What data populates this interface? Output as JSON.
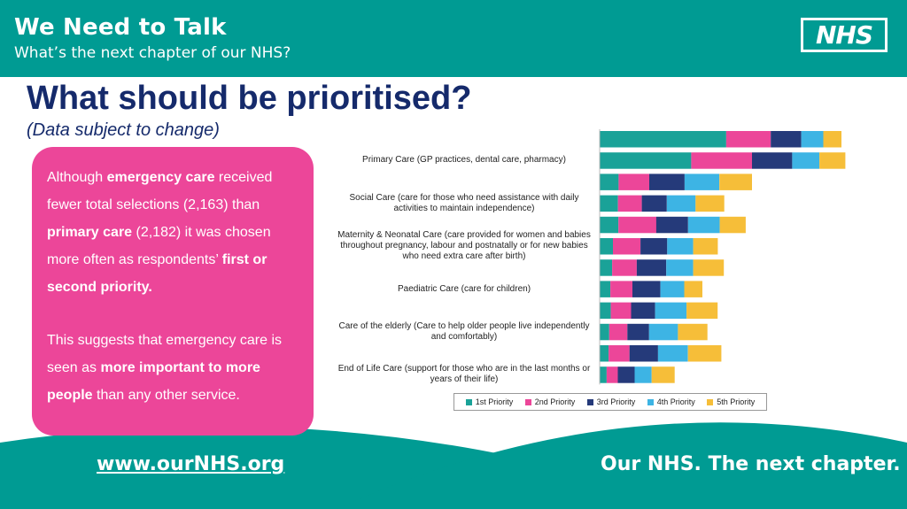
{
  "header": {
    "title": "We Need to Talk",
    "subtitle": "What’s the next chapter of our NHS?",
    "logo_text": "NHS"
  },
  "page": {
    "title": "What should be prioritised?",
    "note": "(Data subject to change)"
  },
  "callout": {
    "p1_parts": [
      "Although ",
      "emergency care",
      " received fewer total selections (2,163) than ",
      "primary care",
      " (2,182) it was chosen more often as respondents’ ",
      "first or second priority."
    ],
    "p2_parts": [
      "This suggests that emergency care is seen as ",
      "more important to more people",
      " than any other service."
    ]
  },
  "footer": {
    "url": "www.ourNHS.org",
    "tagline": "Our NHS. The next chapter."
  },
  "colors": {
    "teal": "#009b93",
    "pink": "#ec4699",
    "navy": "#152a6b",
    "series": [
      "#1aa298",
      "#ec4699",
      "#253a7a",
      "#3db4e4",
      "#f6be39"
    ]
  },
  "chart_data": {
    "type": "bar",
    "orientation": "horizontal",
    "stacked": true,
    "categories": [
      "",
      "Primary Care  (GP practices, dental care, pharmacy)",
      "",
      "Social Care (care for those who need assistance with daily activities to maintain independence)",
      "",
      "Maternity & Neonatal Care (care provided for women and babies throughout pregnancy, labour and postnatally or for new babies who need extra care after birth)",
      "",
      "Paediatric Care (care for children)",
      "",
      "Care of the elderly (Care to help older people live independently and comfortably)",
      "",
      "End of Life Care (support for those who are in the last months or years of their life)"
    ],
    "series": [
      {
        "name": "1st Priority",
        "values": [
          648,
          469,
          97,
          94,
          96,
          68,
          64,
          55,
          57,
          49,
          46,
          36
        ]
      },
      {
        "name": "2nd Priority",
        "values": [
          228,
          311,
          157,
          122,
          194,
          141,
          126,
          113,
          104,
          93,
          107,
          57
        ]
      },
      {
        "name": "3rd Priority",
        "values": [
          156,
          206,
          181,
          128,
          163,
          137,
          151,
          143,
          123,
          111,
          146,
          86
        ]
      },
      {
        "name": "4th Priority",
        "values": [
          113,
          139,
          178,
          147,
          162,
          133,
          138,
          122,
          161,
          148,
          153,
          87
        ]
      },
      {
        "name": "5th Priority",
        "values": [
          93,
          133,
          167,
          147,
          133,
          126,
          157,
          93,
          159,
          151,
          171,
          118
        ]
      }
    ],
    "legend_position": "bottom",
    "grid": false
  }
}
